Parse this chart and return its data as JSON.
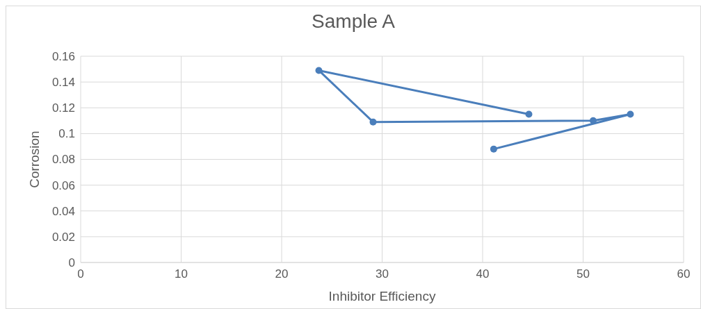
{
  "chart_data": {
    "type": "line",
    "title": "Sample A",
    "xlabel": "Inhibitor Efficiency",
    "ylabel": "Corrosion",
    "xlim": [
      0,
      60
    ],
    "xticks": [
      0,
      10,
      20,
      30,
      40,
      50,
      60
    ],
    "ylim": [
      0,
      0.16
    ],
    "yticks": [
      0,
      0.02,
      0.04,
      0.06,
      0.08,
      0.1,
      0.12,
      0.14,
      0.16
    ],
    "grid": true,
    "marker": "circle",
    "line_style": "solid",
    "series": [
      {
        "color": "#4a7ebb",
        "x": [
          44.6,
          23.7,
          29.1,
          51,
          54.7,
          41.1
        ],
        "values": [
          0.115,
          0.149,
          0.109,
          0.11,
          0.115,
          0.088
        ]
      }
    ]
  }
}
